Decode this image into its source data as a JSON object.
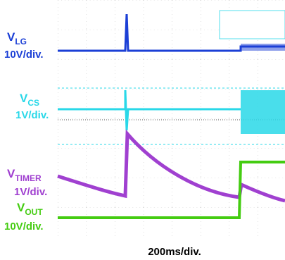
{
  "channels": [
    {
      "name": "V",
      "sub": "LG",
      "scale": "10V/div."
    },
    {
      "name": "V",
      "sub": "CS",
      "scale": "1V/div."
    },
    {
      "name": "V",
      "sub": "TIMER",
      "scale": "1V/div."
    },
    {
      "name": "V",
      "sub": "OUT",
      "scale": "10V/div."
    }
  ],
  "time_scale": "200ms/div."
}
